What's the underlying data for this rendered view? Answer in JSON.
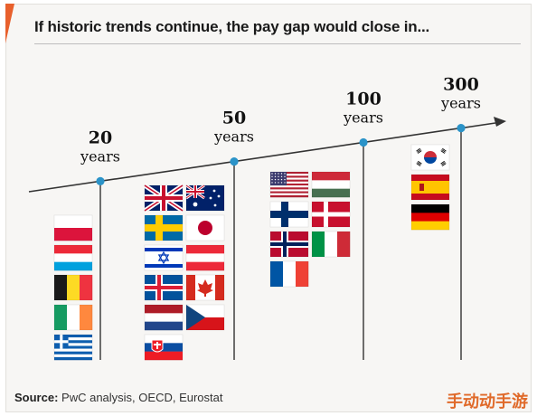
{
  "title": "If historic trends continue, the pay gap would close in...",
  "source_label": "Source:",
  "source_text": "PwC analysis, OECD, Eurostat",
  "watermark": "手动动手游",
  "colors": {
    "accent": "#e8602c",
    "line": "#333333",
    "dot": "#2b93c8"
  },
  "chart_data": {
    "type": "timeline",
    "title": "If historic trends continue, the pay gap would close in...",
    "milestones": [
      {
        "years": 20,
        "number": "20",
        "unit": "years",
        "flags": [
          "poland",
          "luxembourg",
          "belgium",
          "ireland",
          "greece"
        ]
      },
      {
        "years": 50,
        "number": "50",
        "unit": "years",
        "flags": [
          "uk",
          "australia",
          "sweden",
          "japan",
          "israel",
          "austria",
          "iceland",
          "canada",
          "netherlands",
          "czech",
          "slovakia"
        ]
      },
      {
        "years": 100,
        "number": "100",
        "unit": "years",
        "flags": [
          "usa",
          "hungary",
          "finland",
          "denmark",
          "norway",
          "italy",
          "france"
        ]
      },
      {
        "years": 300,
        "number": "300",
        "unit": "years",
        "flags": [
          "south-korea",
          "spain",
          "germany"
        ]
      }
    ]
  }
}
